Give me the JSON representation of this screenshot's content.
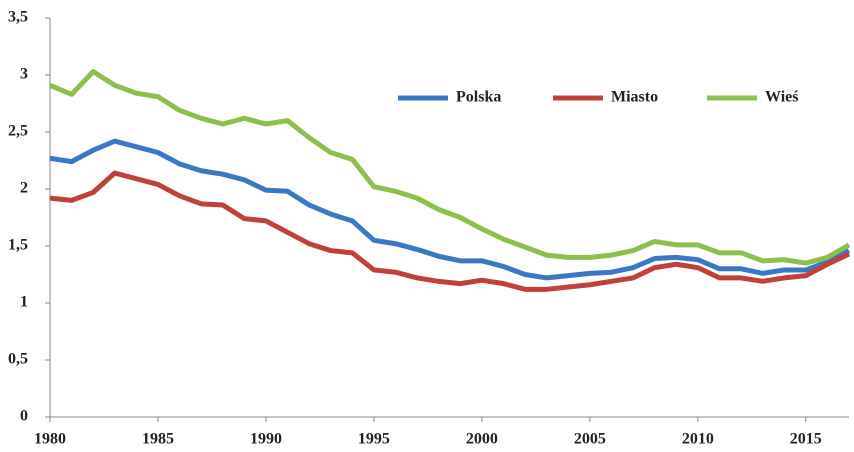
{
  "chart_data": {
    "type": "line",
    "x": [
      1980,
      1981,
      1982,
      1983,
      1984,
      1985,
      1986,
      1987,
      1988,
      1989,
      1990,
      1991,
      1992,
      1993,
      1994,
      1995,
      1996,
      1997,
      1998,
      1999,
      2000,
      2001,
      2002,
      2003,
      2004,
      2005,
      2006,
      2007,
      2008,
      2009,
      2010,
      2011,
      2012,
      2013,
      2014,
      2015,
      2016,
      2017
    ],
    "xlim": [
      1980,
      2017
    ],
    "xticks": [
      1980,
      1985,
      1990,
      1995,
      2000,
      2005,
      2010,
      2015
    ],
    "ylim": [
      0,
      3.5
    ],
    "yticks": [
      0,
      {
        "value": 0.5,
        "label": "0,5"
      },
      1,
      {
        "value": 1.5,
        "label": "1,5"
      },
      2,
      {
        "value": 2.5,
        "label": "2,5"
      },
      3,
      {
        "value": 3.5,
        "label": "3,5"
      }
    ],
    "grid": false,
    "legend": "top",
    "series": [
      {
        "name": "Polska",
        "color": "#3b78c4",
        "values": [
          2.27,
          2.24,
          2.34,
          2.42,
          2.37,
          2.32,
          2.22,
          2.16,
          2.13,
          2.08,
          1.99,
          1.98,
          1.86,
          1.78,
          1.72,
          1.55,
          1.52,
          1.47,
          1.41,
          1.37,
          1.37,
          1.32,
          1.25,
          1.22,
          1.24,
          1.26,
          1.27,
          1.31,
          1.39,
          1.4,
          1.38,
          1.3,
          1.3,
          1.26,
          1.29,
          1.29,
          1.36,
          1.46
        ]
      },
      {
        "name": "Miasto",
        "color": "#c0403a",
        "values": [
          1.92,
          1.9,
          1.97,
          2.14,
          2.09,
          2.04,
          1.94,
          1.87,
          1.86,
          1.74,
          1.72,
          1.62,
          1.52,
          1.46,
          1.44,
          1.29,
          1.27,
          1.22,
          1.19,
          1.17,
          1.2,
          1.17,
          1.12,
          1.12,
          1.14,
          1.16,
          1.19,
          1.22,
          1.31,
          1.34,
          1.31,
          1.22,
          1.22,
          1.19,
          1.22,
          1.24,
          1.34,
          1.43
        ]
      },
      {
        "name": "Wieś",
        "color": "#8cc04a",
        "values": [
          2.91,
          2.83,
          3.03,
          2.91,
          2.84,
          2.81,
          2.69,
          2.62,
          2.57,
          2.62,
          2.57,
          2.6,
          2.45,
          2.32,
          2.26,
          2.02,
          1.98,
          1.92,
          1.82,
          1.75,
          1.65,
          1.56,
          1.49,
          1.42,
          1.4,
          1.4,
          1.42,
          1.46,
          1.54,
          1.51,
          1.51,
          1.44,
          1.44,
          1.37,
          1.38,
          1.35,
          1.4,
          1.51
        ]
      }
    ]
  }
}
